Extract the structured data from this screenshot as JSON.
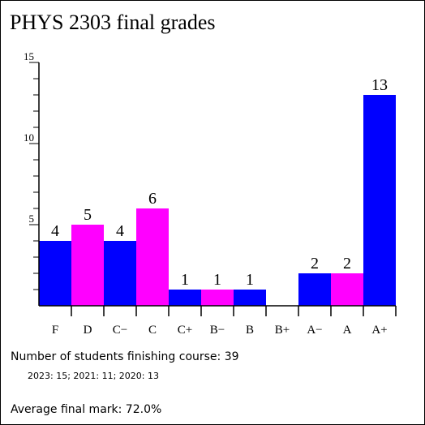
{
  "title": "PHYS 2303 final grades",
  "chart_data": {
    "type": "bar",
    "categories": [
      "F",
      "D",
      "C−",
      "C",
      "C+",
      "B−",
      "B",
      "B+",
      "A−",
      "A",
      "A+"
    ],
    "values": [
      4,
      5,
      4,
      6,
      1,
      1,
      1,
      0,
      2,
      2,
      13
    ],
    "bar_colors": [
      "#0000ff",
      "#ff00ff",
      "#0000ff",
      "#ff00ff",
      "#0000ff",
      "#ff00ff",
      "#0000ff",
      "#ff00ff",
      "#0000ff",
      "#ff00ff",
      "#0000ff"
    ],
    "y_ticks": [
      5,
      10,
      15
    ],
    "ylim": [
      0,
      15
    ],
    "grid": false,
    "legend": "none"
  },
  "footer": {
    "students_line": "Number of students finishing course: 39",
    "breakdown_line": "2023: 15; 2021: 11; 2020: 13",
    "average_line": "Average final mark: 72.0%"
  }
}
